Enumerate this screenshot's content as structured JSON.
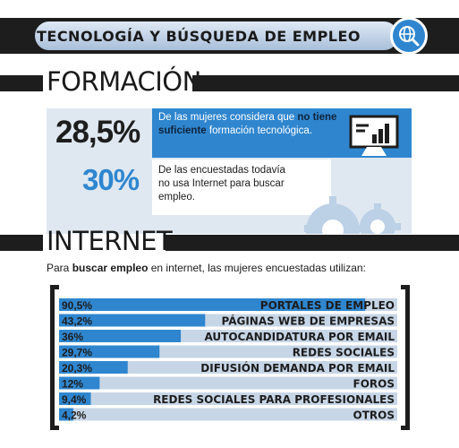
{
  "header": {
    "title": "TECNOLOGÍA Y BÚSQUEDA DE EMPLEO",
    "icon": "globe-search-icon"
  },
  "formacion": {
    "heading": "FORMACIÓN",
    "stat1": {
      "percent": "28,5%",
      "text_before": "De las mujeres considera que",
      "text_bold": "no tiene suficiente",
      "text_after": "formación tecnológica."
    },
    "stat2": {
      "percent": "30%",
      "text": "De las encuestadas todavía no usa Internet para buscar empleo."
    },
    "icons": [
      "monitor-chart-icon",
      "gears-icon"
    ]
  },
  "internet": {
    "heading": "INTERNET",
    "intro_before": "Para",
    "intro_bold": "buscar empleo",
    "intro_after": "en internet, las mujeres encuestadas utilizan:"
  },
  "colors": {
    "accent_blue": "#2f86cf",
    "light_blue": "#dfe8f1",
    "bar_track": "#c7d6e6",
    "dark": "#1d1d1d"
  },
  "chart_data": {
    "type": "bar",
    "orientation": "horizontal",
    "categories": [
      "PORTALES DE EMPLEO",
      "PÁGINAS WEB DE EMPRESAS",
      "AUTOCANDIDATURA POR EMAIL",
      "REDES SOCIALES",
      "DIFUSIÓN DEMANDA POR EMAIL",
      "FOROS",
      "REDES SOCIALES PARA PROFESIONALES",
      "OTROS"
    ],
    "values": [
      90.5,
      43.2,
      36,
      29.7,
      20.3,
      12,
      9.4,
      4.2
    ],
    "value_labels": [
      "90,5%",
      "43,2%",
      "36%",
      "29,7%",
      "20,3%",
      "12%",
      "9,4%",
      "4,2%"
    ],
    "xlim": [
      0,
      100
    ],
    "grid": false
  }
}
